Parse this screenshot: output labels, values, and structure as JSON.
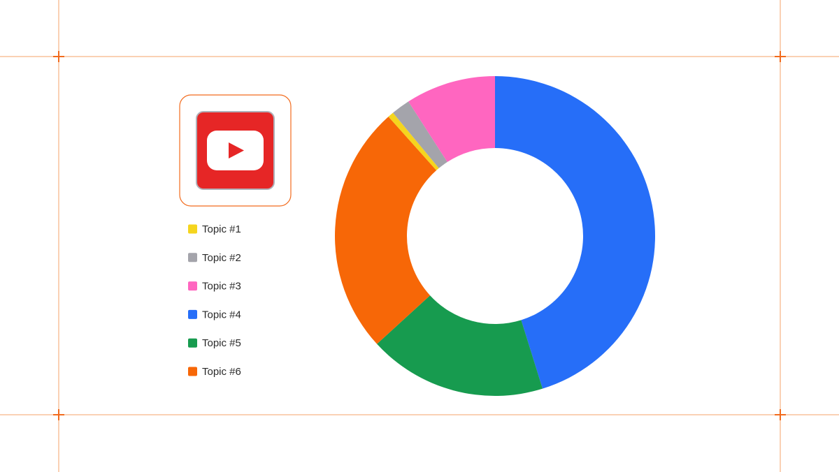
{
  "chart_data": {
    "type": "donut",
    "categories": [
      "Topic #1",
      "Topic #2",
      "Topic #3",
      "Topic #4",
      "Topic #5",
      "Topic #6"
    ],
    "values": [
      0.6,
      1.9,
      9.1,
      45.2,
      18,
      25.2
    ],
    "colors": [
      "#f5d51e",
      "#a4a4ab",
      "#ff66c0",
      "#266ef8",
      "#179b4f",
      "#f76707"
    ],
    "legend": "left"
  }
}
